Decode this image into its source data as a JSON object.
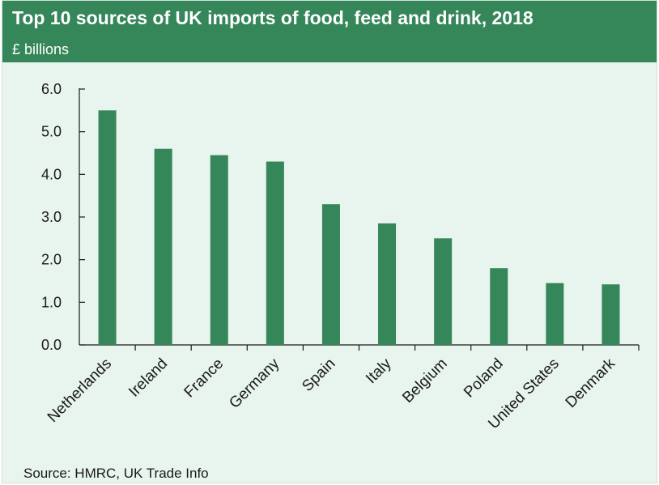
{
  "header": {
    "title": "Top 10 sources of UK imports of food, feed and drink, 2018",
    "subtitle": "£ billions"
  },
  "footer": {
    "source": "Source: HMRC, UK Trade Info"
  },
  "colors": {
    "bar": "#358659",
    "header": "#358659",
    "background": "#e8f4ee",
    "axis": "#1a1a1a"
  },
  "chart_data": {
    "type": "bar",
    "title": "Top 10 sources of UK imports of food, feed and drink, 2018",
    "ylabel": "£ billions",
    "xlabel": "",
    "categories": [
      "Netherlands",
      "Ireland",
      "France",
      "Germany",
      "Spain",
      "Italy",
      "Belgium",
      "Poland",
      "United States",
      "Denmark"
    ],
    "values": [
      5.5,
      4.6,
      4.45,
      4.3,
      3.3,
      2.85,
      2.5,
      1.8,
      1.45,
      1.42
    ],
    "ylim": [
      0,
      6
    ],
    "yticks": [
      "0.0",
      "1.0",
      "2.0",
      "3.0",
      "4.0",
      "5.0",
      "6.0"
    ],
    "grid": false,
    "legend": "none"
  }
}
